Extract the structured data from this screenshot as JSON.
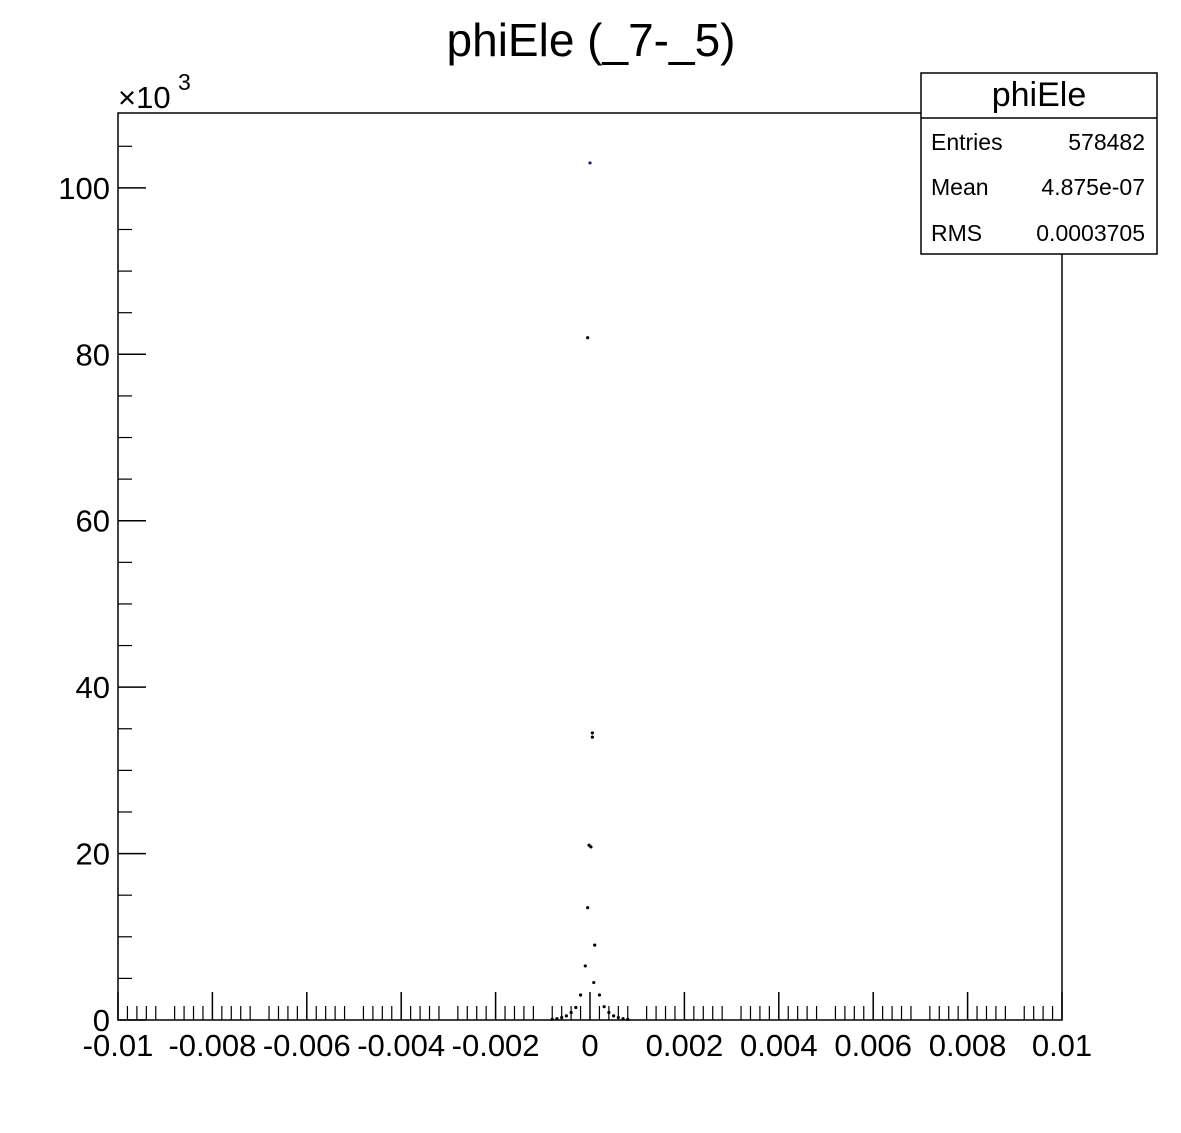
{
  "chart_data": {
    "type": "scatter",
    "title": "phiEle (_7-_5)",
    "y_multiplier_label": "×10",
    "y_multiplier_exponent": "3",
    "xlim": [
      -0.01,
      0.01
    ],
    "ylim": [
      0,
      109000
    ],
    "x_tick_labels": [
      "-0.01",
      "-0.008",
      "-0.006",
      "-0.004",
      "-0.002",
      "0",
      "0.002",
      "0.004",
      "0.006",
      "0.008",
      "0.01"
    ],
    "x_tick_values": [
      -0.01,
      -0.008,
      -0.006,
      -0.004,
      -0.002,
      0,
      0.002,
      0.004,
      0.006,
      0.008,
      0.01
    ],
    "y_tick_labels": [
      "0",
      "20",
      "40",
      "60",
      "80",
      "100"
    ],
    "y_tick_values": [
      0,
      20000,
      40000,
      60000,
      80000,
      100000
    ],
    "marker_color": "#000000",
    "peak_marker_color": "#1a1a66",
    "series": [
      {
        "x": [
          -0.0008,
          -0.0007,
          -0.0006,
          -0.0005,
          -0.0004,
          -0.0003,
          -0.0002,
          -0.0001,
          -5e-05,
          0.0,
          5e-05,
          0.0001,
          0.0002,
          0.0003,
          0.0004,
          0.0005,
          0.0006,
          0.0007,
          0.0008
        ],
        "y": [
          80,
          150,
          300,
          500,
          900,
          1500,
          3000,
          6500,
          13500,
          103000,
          34000,
          9000,
          3000,
          1600,
          900,
          500,
          300,
          150,
          80
        ]
      },
      {
        "x": [
          -5e-05,
          5e-05,
          2e-05,
          -2e-05,
          8e-05
        ],
        "y": [
          82000,
          34500,
          20800,
          21000,
          4500
        ]
      }
    ],
    "stats_box": {
      "title": "phiEle",
      "rows": [
        {
          "label": "Entries",
          "value": "578482"
        },
        {
          "label": "Mean",
          "value": "4.875e-07"
        },
        {
          "label": "RMS",
          "value": "0.0003705"
        }
      ]
    },
    "legend_position": "top-right",
    "grid": false
  }
}
